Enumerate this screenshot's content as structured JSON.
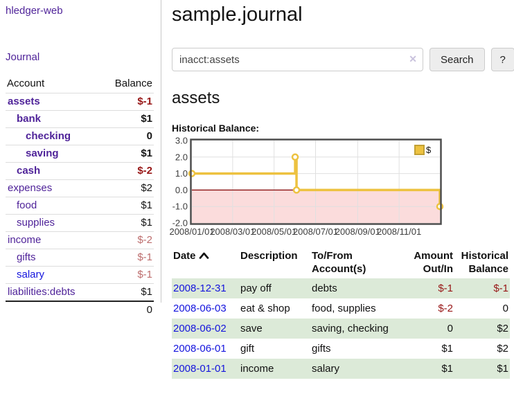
{
  "sidebar": {
    "brand": "hledger-web",
    "nav": {
      "journal_label": "Journal"
    },
    "accounts_table": {
      "headers": [
        "Account",
        "Balance"
      ],
      "rows": [
        {
          "name": "assets",
          "indent": 1,
          "bold": true,
          "balance": "$-1",
          "balance_color": "negative",
          "link_color": "purple"
        },
        {
          "name": "bank",
          "indent": 2,
          "bold": true,
          "balance": "$1",
          "balance_color": "normal",
          "link_color": "purple"
        },
        {
          "name": "checking",
          "indent": 3,
          "bold": true,
          "balance": "0",
          "balance_color": "normal",
          "link_color": "purple"
        },
        {
          "name": "saving",
          "indent": 3,
          "bold": true,
          "balance": "$1",
          "balance_color": "normal",
          "link_color": "purple"
        },
        {
          "name": "cash",
          "indent": 2,
          "bold": true,
          "balance": "$-2",
          "balance_color": "negative",
          "link_color": "purple"
        },
        {
          "name": "expenses",
          "indent": 1,
          "bold": false,
          "balance": "$2",
          "balance_color": "normal",
          "link_color": "purple"
        },
        {
          "name": "food",
          "indent": 2,
          "bold": false,
          "balance": "$1",
          "balance_color": "normal",
          "link_color": "purple"
        },
        {
          "name": "supplies",
          "indent": 2,
          "bold": false,
          "balance": "$1",
          "balance_color": "normal",
          "link_color": "purple"
        },
        {
          "name": "income",
          "indent": 1,
          "bold": false,
          "balance": "$-2",
          "balance_color": "muted-negative",
          "link_color": "purple"
        },
        {
          "name": "gifts",
          "indent": 2,
          "bold": false,
          "balance": "$-1",
          "balance_color": "muted-negative",
          "link_color": "purple"
        },
        {
          "name": "salary",
          "indent": 2,
          "bold": false,
          "balance": "$-1",
          "balance_color": "muted-negative",
          "link_color": "blue"
        },
        {
          "name": "liabilities:debts",
          "indent": 1,
          "bold": false,
          "balance": "$1",
          "balance_color": "normal",
          "link_color": "purple"
        }
      ],
      "total": "0"
    }
  },
  "header": {
    "title": "sample.journal"
  },
  "search": {
    "value": "inacct:assets",
    "clear_icon": "✕",
    "button_label": "Search",
    "help_label": "?"
  },
  "account_page": {
    "title": "assets",
    "chart_label": "Historical Balance:"
  },
  "chart_data": {
    "type": "line",
    "step": true,
    "title": "Historical Balance",
    "ylim": [
      -2.0,
      3.0
    ],
    "grid": true,
    "legend_position": "top-right",
    "yticks": [
      {
        "v": 3.0,
        "label": "3.0"
      },
      {
        "v": 2.0,
        "label": "2.0"
      },
      {
        "v": 1.0,
        "label": "1.0"
      },
      {
        "v": 0.0,
        "label": "0.0"
      },
      {
        "v": -1.0,
        "label": "-1.0"
      },
      {
        "v": -2.0,
        "label": "-2.0"
      }
    ],
    "xticks": [
      {
        "label": "2008/01/01",
        "fx": 0.0
      },
      {
        "label": "2008/03/01",
        "fx": 0.1644
      },
      {
        "label": "2008/05/01",
        "fx": 0.3315
      },
      {
        "label": "2008/07/01",
        "fx": 0.4986
      },
      {
        "label": "2008/09/01",
        "fx": 0.6685
      },
      {
        "label": "2008/11/01",
        "fx": 0.8356
      }
    ],
    "series": [
      {
        "name": "$",
        "color": "#edc240",
        "points": [
          {
            "date": "2008/01/01",
            "fx": 0.0,
            "y": 1
          },
          {
            "date": "2008/06/01",
            "fx": 0.4164,
            "y": 2
          },
          {
            "date": "2008/06/03",
            "fx": 0.4219,
            "y": 0
          },
          {
            "date": "2008/12/31",
            "fx": 1.0,
            "y": -1
          }
        ]
      }
    ],
    "negative_region_color": "#fbdcdc",
    "zero_line_color": "#8b1111",
    "plot_border_color": "#4d4d4d",
    "grid_color": "#e0e0e0"
  },
  "transactions": {
    "columns": [
      "Date",
      "Description",
      "To/From Account(s)",
      "Amount Out/In",
      "Historical Balance"
    ],
    "sort_icon": "chevron-up",
    "rows": [
      {
        "date": "2008-12-31",
        "description": "pay off",
        "accounts": "debts",
        "amount": "$-1",
        "amount_negative": true,
        "balance": "$-1",
        "balance_negative": true
      },
      {
        "date": "2008-06-03",
        "description": "eat & shop",
        "accounts": "food, supplies",
        "amount": "$-2",
        "amount_negative": true,
        "balance": "0",
        "balance_negative": false
      },
      {
        "date": "2008-06-02",
        "description": "save",
        "accounts": "saving, checking",
        "amount": "0",
        "amount_negative": false,
        "balance": "$2",
        "balance_negative": false
      },
      {
        "date": "2008-06-01",
        "description": "gift",
        "accounts": "gifts",
        "amount": "$1",
        "amount_negative": false,
        "balance": "$2",
        "balance_negative": false
      },
      {
        "date": "2008-01-01",
        "description": "income",
        "accounts": "salary",
        "amount": "$1",
        "amount_negative": false,
        "balance": "$1",
        "balance_negative": false
      }
    ]
  },
  "colors": {
    "link_purple": "#4f2399",
    "link_blue": "#1414dd",
    "negative": "#971616",
    "muted_negative": "#bd6d6d",
    "row_green": "#dcead8",
    "series_gold": "#edc240"
  }
}
